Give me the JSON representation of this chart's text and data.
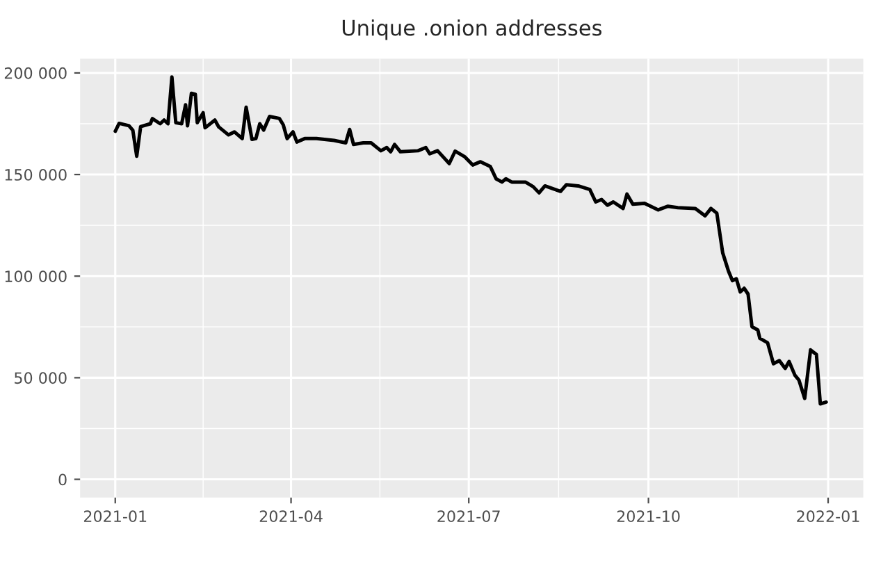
{
  "chart_data": {
    "type": "line",
    "title": "Unique .onion addresses",
    "x": [
      "2021-01-01",
      "2021-01-03",
      "2021-01-08",
      "2021-01-10",
      "2021-01-12",
      "2021-01-14",
      "2021-01-19",
      "2021-01-20",
      "2021-01-24",
      "2021-01-26",
      "2021-01-28",
      "2021-01-30",
      "2021-02-01",
      "2021-02-04",
      "2021-02-06",
      "2021-02-07",
      "2021-02-09",
      "2021-02-11",
      "2021-02-12",
      "2021-02-15",
      "2021-02-16",
      "2021-02-21",
      "2021-02-23",
      "2021-02-28",
      "2021-03-03",
      "2021-03-07",
      "2021-03-09",
      "2021-03-12",
      "2021-03-14",
      "2021-03-16",
      "2021-03-18",
      "2021-03-21",
      "2021-03-26",
      "2021-03-28",
      "2021-03-30",
      "2021-04-02",
      "2021-04-04",
      "2021-04-08",
      "2021-04-14",
      "2021-04-23",
      "2021-04-29",
      "2021-05-01",
      "2021-05-03",
      "2021-05-08",
      "2021-05-12",
      "2021-05-17",
      "2021-05-20",
      "2021-05-22",
      "2021-05-24",
      "2021-05-27",
      "2021-06-05",
      "2021-06-09",
      "2021-06-11",
      "2021-06-15",
      "2021-06-19",
      "2021-06-21",
      "2021-06-24",
      "2021-06-29",
      "2021-07-03",
      "2021-07-07",
      "2021-07-12",
      "2021-07-15",
      "2021-07-18",
      "2021-07-20",
      "2021-07-23",
      "2021-07-30",
      "2021-08-03",
      "2021-08-06",
      "2021-08-09",
      "2021-08-17",
      "2021-08-20",
      "2021-08-26",
      "2021-09-01",
      "2021-09-04",
      "2021-09-07",
      "2021-09-10",
      "2021-09-13",
      "2021-09-18",
      "2021-09-20",
      "2021-09-23",
      "2021-09-29",
      "2021-10-06",
      "2021-10-11",
      "2021-10-16",
      "2021-10-25",
      "2021-10-30",
      "2021-11-02",
      "2021-11-05",
      "2021-11-08",
      "2021-11-11",
      "2021-11-13",
      "2021-11-15",
      "2021-11-17",
      "2021-11-19",
      "2021-11-21",
      "2021-11-23",
      "2021-11-26",
      "2021-11-27",
      "2021-12-01",
      "2021-12-04",
      "2021-12-07",
      "2021-12-10",
      "2021-12-12",
      "2021-12-15",
      "2021-12-17",
      "2021-12-20",
      "2021-12-23",
      "2021-12-26",
      "2021-12-28",
      "2021-12-31"
    ],
    "series": [
      {
        "color": "#000000",
        "values": [
          171300,
          175200,
          174000,
          171800,
          159000,
          173600,
          175000,
          177500,
          175000,
          176800,
          175000,
          198000,
          175500,
          175000,
          184300,
          174000,
          190000,
          189500,
          175500,
          180400,
          173000,
          176800,
          173400,
          169500,
          171000,
          167700,
          183100,
          167300,
          167700,
          175000,
          171900,
          178600,
          177600,
          174500,
          167700,
          171000,
          166000,
          167700,
          167700,
          166800,
          165600,
          172200,
          164800,
          165600,
          165600,
          161700,
          163300,
          161200,
          164800,
          161200,
          161700,
          163300,
          160200,
          161700,
          157500,
          155400,
          161500,
          158700,
          154700,
          156300,
          154000,
          147900,
          146300,
          147900,
          146300,
          146300,
          144000,
          141000,
          144400,
          141700,
          145000,
          144400,
          142600,
          136500,
          137700,
          134900,
          136500,
          133300,
          140400,
          135400,
          135800,
          132600,
          134400,
          133700,
          133300,
          129700,
          133300,
          131000,
          111500,
          102400,
          97800,
          98700,
          92200,
          94000,
          91200,
          75100,
          73500,
          69400,
          67200,
          56900,
          58400,
          54600,
          58000,
          51200,
          48900,
          39800,
          63700,
          61400,
          37100,
          38000
        ]
      }
    ],
    "xlim": [
      "2020-12-14",
      "2022-01-19"
    ],
    "xticks": [
      {
        "value": "2021-01-01",
        "label": "2021-01"
      },
      {
        "value": "2021-04-01",
        "label": "2021-04"
      },
      {
        "value": "2021-07-01",
        "label": "2021-07"
      },
      {
        "value": "2021-10-01",
        "label": "2021-10"
      },
      {
        "value": "2022-01-01",
        "label": "2022-01"
      }
    ],
    "ylim": [
      -9000,
      207000
    ],
    "yticks": [
      0,
      {
        "value": 50000,
        "label": "50 000"
      },
      {
        "value": 100000,
        "label": "100 000"
      },
      {
        "value": 150000,
        "label": "150 000"
      },
      {
        "value": 200000,
        "label": "200 000"
      }
    ],
    "grid": true,
    "legend": false,
    "marker": "none",
    "line_style": "solid"
  }
}
